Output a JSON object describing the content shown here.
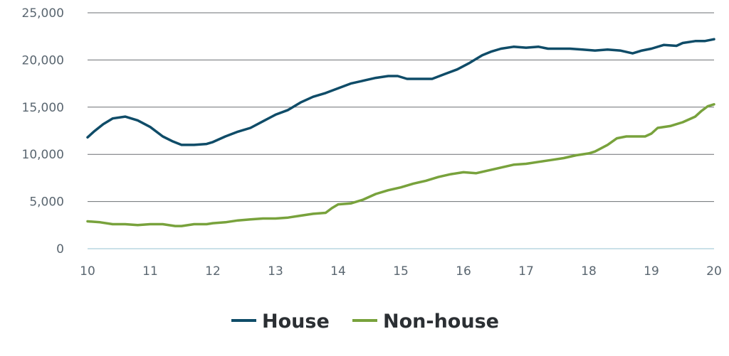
{
  "chart_data": {
    "type": "line",
    "title": "",
    "xlabel": "",
    "ylabel": "",
    "xlim": [
      10,
      20
    ],
    "ylim": [
      0,
      25000
    ],
    "grid": true,
    "legend_placement": "bottom-center",
    "x_ticks": [
      "10",
      "11",
      "12",
      "13",
      "14",
      "15",
      "16",
      "17",
      "18",
      "19",
      "20"
    ],
    "y_ticks": [
      "0",
      "5,000",
      "10,000",
      "15,000",
      "20,000",
      "25,000"
    ],
    "series": [
      {
        "name": "House",
        "color": "#0f4c68",
        "points": [
          [
            10.0,
            11800
          ],
          [
            10.1,
            12400
          ],
          [
            10.25,
            13200
          ],
          [
            10.4,
            13800
          ],
          [
            10.6,
            14000
          ],
          [
            10.8,
            13600
          ],
          [
            11.0,
            12900
          ],
          [
            11.2,
            11900
          ],
          [
            11.35,
            11400
          ],
          [
            11.5,
            11000
          ],
          [
            11.7,
            11000
          ],
          [
            11.9,
            11100
          ],
          [
            12.0,
            11300
          ],
          [
            12.2,
            11900
          ],
          [
            12.4,
            12400
          ],
          [
            12.6,
            12800
          ],
          [
            12.8,
            13500
          ],
          [
            13.0,
            14200
          ],
          [
            13.2,
            14700
          ],
          [
            13.4,
            15500
          ],
          [
            13.6,
            16100
          ],
          [
            13.8,
            16500
          ],
          [
            14.0,
            17000
          ],
          [
            14.2,
            17500
          ],
          [
            14.4,
            17800
          ],
          [
            14.6,
            18100
          ],
          [
            14.8,
            18300
          ],
          [
            14.95,
            18300
          ],
          [
            15.1,
            18000
          ],
          [
            15.3,
            18000
          ],
          [
            15.5,
            18000
          ],
          [
            15.7,
            18500
          ],
          [
            15.9,
            19000
          ],
          [
            16.1,
            19700
          ],
          [
            16.3,
            20500
          ],
          [
            16.45,
            20900
          ],
          [
            16.6,
            21200
          ],
          [
            16.8,
            21400
          ],
          [
            17.0,
            21300
          ],
          [
            17.2,
            21400
          ],
          [
            17.35,
            21200
          ],
          [
            17.5,
            21200
          ],
          [
            17.7,
            21200
          ],
          [
            17.9,
            21100
          ],
          [
            18.1,
            21000
          ],
          [
            18.3,
            21100
          ],
          [
            18.5,
            21000
          ],
          [
            18.7,
            20700
          ],
          [
            18.85,
            21000
          ],
          [
            19.0,
            21200
          ],
          [
            19.2,
            21600
          ],
          [
            19.4,
            21500
          ],
          [
            19.5,
            21800
          ],
          [
            19.7,
            22000
          ],
          [
            19.85,
            22000
          ],
          [
            20.0,
            22200
          ]
        ]
      },
      {
        "name": "Non-house",
        "color": "#78a23c",
        "points": [
          [
            10.0,
            2900
          ],
          [
            10.2,
            2800
          ],
          [
            10.4,
            2600
          ],
          [
            10.6,
            2600
          ],
          [
            10.8,
            2500
          ],
          [
            11.0,
            2600
          ],
          [
            11.2,
            2600
          ],
          [
            11.4,
            2400
          ],
          [
            11.5,
            2400
          ],
          [
            11.7,
            2600
          ],
          [
            11.9,
            2600
          ],
          [
            12.0,
            2700
          ],
          [
            12.2,
            2800
          ],
          [
            12.4,
            3000
          ],
          [
            12.6,
            3100
          ],
          [
            12.8,
            3200
          ],
          [
            13.0,
            3200
          ],
          [
            13.2,
            3300
          ],
          [
            13.4,
            3500
          ],
          [
            13.6,
            3700
          ],
          [
            13.8,
            3800
          ],
          [
            13.9,
            4300
          ],
          [
            14.0,
            4700
          ],
          [
            14.2,
            4800
          ],
          [
            14.4,
            5200
          ],
          [
            14.6,
            5800
          ],
          [
            14.8,
            6200
          ],
          [
            15.0,
            6500
          ],
          [
            15.2,
            6900
          ],
          [
            15.4,
            7200
          ],
          [
            15.6,
            7600
          ],
          [
            15.8,
            7900
          ],
          [
            16.0,
            8100
          ],
          [
            16.2,
            8000
          ],
          [
            16.4,
            8300
          ],
          [
            16.6,
            8600
          ],
          [
            16.8,
            8900
          ],
          [
            17.0,
            9000
          ],
          [
            17.2,
            9200
          ],
          [
            17.4,
            9400
          ],
          [
            17.6,
            9600
          ],
          [
            17.8,
            9900
          ],
          [
            18.0,
            10100
          ],
          [
            18.1,
            10300
          ],
          [
            18.3,
            11000
          ],
          [
            18.45,
            11700
          ],
          [
            18.6,
            11900
          ],
          [
            18.8,
            11900
          ],
          [
            18.9,
            11900
          ],
          [
            19.0,
            12200
          ],
          [
            19.1,
            12800
          ],
          [
            19.3,
            13000
          ],
          [
            19.5,
            13400
          ],
          [
            19.7,
            14000
          ],
          [
            19.8,
            14600
          ],
          [
            19.9,
            15100
          ],
          [
            20.0,
            15300
          ]
        ]
      }
    ]
  }
}
